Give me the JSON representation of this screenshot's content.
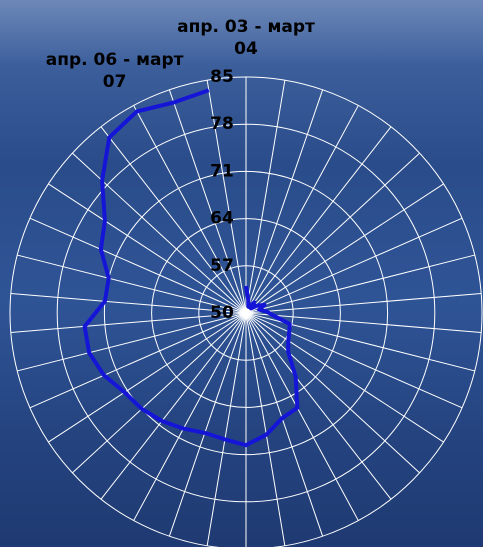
{
  "chart_data": {
    "type": "radar",
    "categories": [
      "апр. 03 - март 04",
      null,
      null,
      null,
      null,
      null,
      null,
      null,
      null,
      null,
      null,
      null,
      null,
      null,
      null,
      null,
      null,
      null,
      null,
      null,
      null,
      null,
      null,
      null,
      null,
      null,
      null,
      null,
      null,
      null,
      null,
      null,
      null,
      null,
      null,
      "апр. 06 - март 07",
      null,
      null
    ],
    "series": [
      {
        "color": "#1515d8",
        "values": [
          54,
          52,
          51,
          51,
          52,
          51,
          52,
          53,
          52,
          53,
          54,
          56.7,
          57,
          57.5,
          58.5,
          62,
          66,
          66.5,
          68.3,
          69.6,
          69,
          68.8,
          69.5,
          70.3,
          71,
          71.5,
          73,
          74,
          74,
          71,
          71,
          73.5,
          75,
          79,
          83,
          84,
          83,
          83.5
        ]
      }
    ],
    "ylim": [
      50,
      85
    ],
    "yticks": [
      50,
      57,
      64,
      71,
      78,
      85
    ],
    "grid": true
  }
}
